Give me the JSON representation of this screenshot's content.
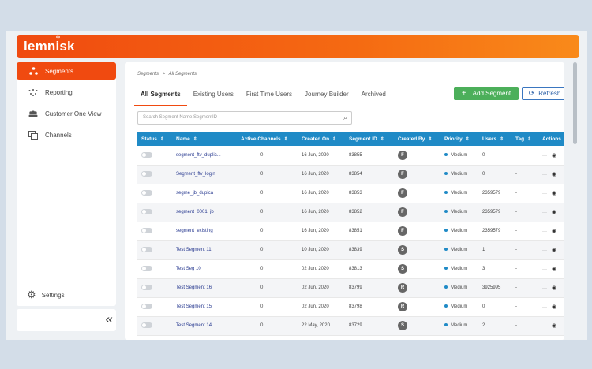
{
  "brand": {
    "name": "lemnisk",
    "mark": "∞"
  },
  "sidebar": {
    "items": [
      {
        "label": "Segments",
        "icon": "segments-icon"
      },
      {
        "label": "Reporting",
        "icon": "reporting-icon"
      },
      {
        "label": "Customer One View",
        "icon": "users-icon"
      },
      {
        "label": "Channels",
        "icon": "channels-icon"
      }
    ],
    "settings_label": "Settings",
    "collapse_glyph": "«"
  },
  "breadcrumb": {
    "root": "Segments",
    "separator": ">",
    "current": "All Segments"
  },
  "tabs": [
    {
      "label": "All Segments",
      "active": true
    },
    {
      "label": "Existing Users"
    },
    {
      "label": "First Time Users"
    },
    {
      "label": "Journey Builder"
    },
    {
      "label": "Archived"
    }
  ],
  "toolbar": {
    "add_label": "Add Segment",
    "add_glyph": "+",
    "refresh_label": "Refresh",
    "refresh_glyph": "⟳"
  },
  "search": {
    "placeholder": "Search Segment Name,SegmentID"
  },
  "table": {
    "columns": [
      "Status",
      "Name",
      "Active Channels",
      "Created On",
      "Segment ID",
      "Created By",
      "Priority",
      "Users",
      "Tag",
      "Actions"
    ],
    "rows": [
      {
        "name": "segment_ftv_duplic...",
        "channels": "0",
        "created": "16 Jun, 2020",
        "id": "83855",
        "by": "F",
        "priority": "Medium",
        "users": "0",
        "tag": "-"
      },
      {
        "name": "Segment_ftv_login",
        "channels": "0",
        "created": "16 Jun, 2020",
        "id": "83854",
        "by": "F",
        "priority": "Medium",
        "users": "0",
        "tag": "-"
      },
      {
        "name": "segme_jb_dupica",
        "channels": "0",
        "created": "16 Jun, 2020",
        "id": "83853",
        "by": "F",
        "priority": "Medium",
        "users": "2359579",
        "tag": "-"
      },
      {
        "name": "segment_0001_jb",
        "channels": "0",
        "created": "16 Jun, 2020",
        "id": "83852",
        "by": "F",
        "priority": "Medium",
        "users": "2359579",
        "tag": "-"
      },
      {
        "name": "segment_existing",
        "channels": "0",
        "created": "16 Jun, 2020",
        "id": "83851",
        "by": "F",
        "priority": "Medium",
        "users": "2359579",
        "tag": "-"
      },
      {
        "name": "Test Segment 11",
        "channels": "0",
        "created": "10 Jun, 2020",
        "id": "83839",
        "by": "S",
        "priority": "Medium",
        "users": "1",
        "tag": "-"
      },
      {
        "name": "Test Seg 10",
        "channels": "0",
        "created": "02 Jun, 2020",
        "id": "83813",
        "by": "S",
        "priority": "Medium",
        "users": "3",
        "tag": "-"
      },
      {
        "name": "Test Segment 16",
        "channels": "0",
        "created": "02 Jun, 2020",
        "id": "83799",
        "by": "R",
        "priority": "Medium",
        "users": "3925995",
        "tag": "-"
      },
      {
        "name": "Test Segment 15",
        "channels": "0",
        "created": "02 Jun, 2020",
        "id": "83798",
        "by": "R",
        "priority": "Medium",
        "users": "0",
        "tag": "-"
      },
      {
        "name": "Test Segment 14",
        "channels": "0",
        "created": "22 May, 2020",
        "id": "83729",
        "by": "S",
        "priority": "Medium",
        "users": "2",
        "tag": "-"
      }
    ],
    "action_glyph": "···",
    "view_glyph": "◉"
  },
  "colors": {
    "accent": "#f04a10",
    "header": "#1f8ac6",
    "add": "#4caf5a",
    "refresh": "#2d62a8",
    "link": "#283a90"
  }
}
